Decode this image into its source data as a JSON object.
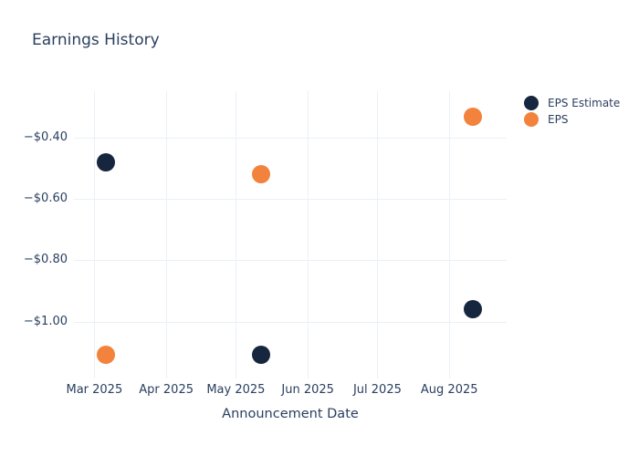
{
  "chart_data": {
    "type": "scatter",
    "title": "Earnings History",
    "xlabel": "Announcement Date",
    "ylabel": "",
    "grid": true,
    "legend_position": "top-right",
    "marker_size_px": 20,
    "legend_marker_size_px": 16,
    "x_ticks": [
      {
        "label": "Mar 2025",
        "day": 59
      },
      {
        "label": "Apr 2025",
        "day": 90
      },
      {
        "label": "May 2025",
        "day": 120
      },
      {
        "label": "Jun 2025",
        "day": 151
      },
      {
        "label": "Jul 2025",
        "day": 181
      },
      {
        "label": "Aug 2025",
        "day": 212
      }
    ],
    "y_ticks": [
      {
        "label": "−$0.40",
        "value": -0.4
      },
      {
        "label": "−$0.60",
        "value": -0.6
      },
      {
        "label": "−$0.80",
        "value": -0.8
      },
      {
        "label": "−$1.00",
        "value": -1.0
      }
    ],
    "xlim_days": [
      50.2,
      236.7
    ],
    "ylim": [
      -1.186,
      -0.248
    ],
    "x_dates": [
      "2025-03-06",
      "2025-05-12",
      "2025-08-11"
    ],
    "x_days": [
      64,
      131,
      222
    ],
    "series": [
      {
        "name": "EPS Estimate",
        "color": "#16263e",
        "values": [
          -0.48,
          -1.11,
          -0.96
        ]
      },
      {
        "name": "EPS",
        "color": "#f2823c",
        "values": [
          -1.11,
          -0.52,
          -0.33
        ]
      }
    ]
  }
}
